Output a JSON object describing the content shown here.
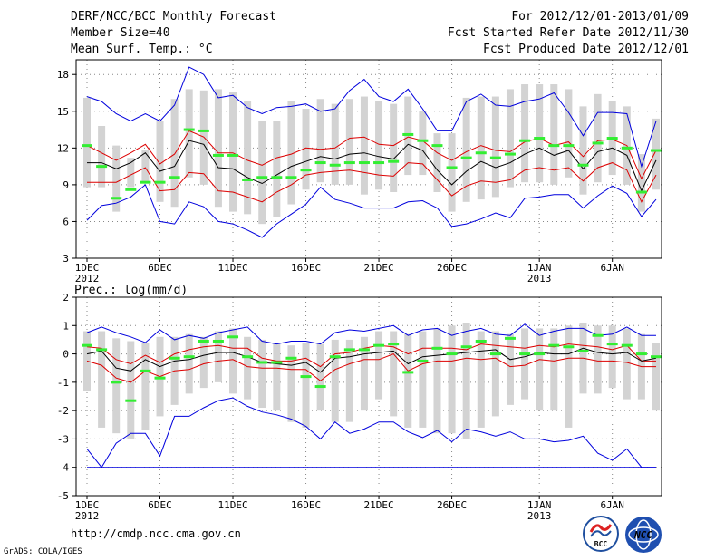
{
  "header": {
    "title": "DERF/NCC/BCC Monthly Forecast",
    "member_size": "Member Size=40",
    "variable": "Mean Surf. Temp.: °C",
    "period": "For 2012/12/01-2013/01/09",
    "fcst_started": "Fcst Started Refer Date 2012/11/30",
    "fcst_produced": "Fcst Produced Date 2012/12/01"
  },
  "footer": {
    "url": "http://cmdp.ncc.cma.gov.cn",
    "credit": "GrADS: COLA/IGES",
    "logo_bcc": "BCC",
    "logo_ncc": "NCC"
  },
  "colors": {
    "box": "#d3d3d3",
    "observed": "#33ee33",
    "mean": "#000000",
    "spread": "#dd0000",
    "extreme": "#0000dd",
    "grid": "#888888"
  },
  "chart_data": [
    {
      "type": "line",
      "panel": "temperature",
      "title": "Mean Surf. Temp.: °C",
      "unit": "°C",
      "ylim": [
        3,
        19.2
      ],
      "yticks": [
        3,
        6,
        9,
        12,
        15,
        18
      ],
      "ytick_labels": [
        "3",
        "6",
        "9",
        "12",
        "15",
        "18"
      ],
      "grid": true,
      "x": [
        1,
        2,
        3,
        4,
        5,
        6,
        7,
        8,
        9,
        10,
        11,
        12,
        13,
        14,
        15,
        16,
        17,
        18,
        19,
        20,
        21,
        22,
        23,
        24,
        25,
        26,
        27,
        28,
        29,
        30,
        31,
        32,
        33,
        34,
        35,
        36,
        37,
        38,
        39,
        40
      ],
      "xticks": [
        1,
        6,
        11,
        16,
        21,
        26,
        32,
        37
      ],
      "xtick_labels": [
        "1DEC",
        "6DEC",
        "11DEC",
        "16DEC",
        "21DEC",
        "26DEC",
        "1JAN",
        "6JAN"
      ],
      "xtick_years": [
        {
          "at": 1,
          "label": "2012"
        },
        {
          "at": 32,
          "label": "2013"
        }
      ],
      "series": [
        {
          "name": "max",
          "role": "extreme",
          "values": [
            16.2,
            15.8,
            14.8,
            14.2,
            14.8,
            14.2,
            15.5,
            18.6,
            18.0,
            16.1,
            16.3,
            15.3,
            14.8,
            15.3,
            15.4,
            15.6,
            15.0,
            15.2,
            16.7,
            17.6,
            16.2,
            15.8,
            16.8,
            15.2,
            13.4,
            13.4,
            15.8,
            16.4,
            15.5,
            15.4,
            15.8,
            16.0,
            16.5,
            14.9,
            13.0,
            14.9,
            14.9,
            14.8,
            10.5,
            14.2
          ]
        },
        {
          "name": "upper",
          "role": "spread",
          "values": [
            12.2,
            11.6,
            11.0,
            11.6,
            12.3,
            10.7,
            11.5,
            13.4,
            12.9,
            11.6,
            11.6,
            11.0,
            10.6,
            11.2,
            11.5,
            12.0,
            11.9,
            12.0,
            12.8,
            12.9,
            12.3,
            12.2,
            12.9,
            12.6,
            11.6,
            11.0,
            11.7,
            12.2,
            11.8,
            11.7,
            12.5,
            12.8,
            12.2,
            12.5,
            11.3,
            12.6,
            12.7,
            12.2,
            9.5,
            11.8
          ]
        },
        {
          "name": "mean",
          "role": "mean",
          "values": [
            10.8,
            10.8,
            10.3,
            10.8,
            11.6,
            10.1,
            10.5,
            12.6,
            12.3,
            10.4,
            10.3,
            9.6,
            9.1,
            9.8,
            10.5,
            10.9,
            11.3,
            11.1,
            11.5,
            11.6,
            11.3,
            11.1,
            12.3,
            11.8,
            10.2,
            9.0,
            10.1,
            10.9,
            10.4,
            10.8,
            11.5,
            12.0,
            11.4,
            11.8,
            10.3,
            11.7,
            12.0,
            11.4,
            8.5,
            11.0
          ]
        },
        {
          "name": "lower",
          "role": "spread",
          "values": [
            9.2,
            9.2,
            9.2,
            9.8,
            10.4,
            8.5,
            8.6,
            10.0,
            9.9,
            8.5,
            8.4,
            8.0,
            7.6,
            8.4,
            9.0,
            9.8,
            10.0,
            10.1,
            10.2,
            10.0,
            9.8,
            9.7,
            10.8,
            10.7,
            9.4,
            8.1,
            8.9,
            9.3,
            9.2,
            9.4,
            10.2,
            10.4,
            10.2,
            10.4,
            9.3,
            10.4,
            10.8,
            10.2,
            7.6,
            9.8
          ]
        },
        {
          "name": "min",
          "role": "extreme",
          "values": [
            6.1,
            7.3,
            7.5,
            8.0,
            9.0,
            6.0,
            5.8,
            7.6,
            7.2,
            6.0,
            5.8,
            5.3,
            4.7,
            5.8,
            6.6,
            7.4,
            8.8,
            7.8,
            7.5,
            7.1,
            7.1,
            7.1,
            7.6,
            7.7,
            7.1,
            5.6,
            5.8,
            6.2,
            6.7,
            6.3,
            7.9,
            8.0,
            8.2,
            8.2,
            7.1,
            8.1,
            8.9,
            8.3,
            6.4,
            7.8
          ]
        },
        {
          "name": "box_high",
          "role": "box",
          "values": [
            16.1,
            13.8,
            12.2,
            11.2,
            11.8,
            14.2,
            16.0,
            16.8,
            16.7,
            16.8,
            16.6,
            15.8,
            14.2,
            14.2,
            15.8,
            15.2,
            16.0,
            15.6,
            16.0,
            16.2,
            15.8,
            15.6,
            16.2,
            15.0,
            13.2,
            13.2,
            16.1,
            16.2,
            16.2,
            16.8,
            17.2,
            17.2,
            17.2,
            16.8,
            15.4,
            16.4,
            15.8,
            15.4,
            11.5,
            14.4
          ]
        },
        {
          "name": "box_low",
          "role": "box",
          "values": [
            8.8,
            8.8,
            6.8,
            8.8,
            9.2,
            7.6,
            7.2,
            9.6,
            9.0,
            7.2,
            6.8,
            6.6,
            5.8,
            6.4,
            7.4,
            8.6,
            9.2,
            9.0,
            9.0,
            8.2,
            8.6,
            8.4,
            9.8,
            9.8,
            8.4,
            6.8,
            7.6,
            7.8,
            8.0,
            8.8,
            9.2,
            9.2,
            9.0,
            9.6,
            8.2,
            9.2,
            9.8,
            9.0,
            6.8,
            8.6
          ]
        },
        {
          "name": "observed",
          "role": "observed",
          "values": [
            12.2,
            10.5,
            7.9,
            8.6,
            9.2,
            9.2,
            9.6,
            13.5,
            13.4,
            11.4,
            11.4,
            9.4,
            9.6,
            9.6,
            9.6,
            10.2,
            10.8,
            10.6,
            10.8,
            10.8,
            10.8,
            10.9,
            13.1,
            12.6,
            12.2,
            10.4,
            11.2,
            11.6,
            11.2,
            11.5,
            12.6,
            12.8,
            12.2,
            12.2,
            10.6,
            12.4,
            12.8,
            12.0,
            8.4,
            11.8
          ]
        }
      ]
    },
    {
      "type": "line",
      "panel": "precipitation",
      "title": "Prec.: log(mm/d)",
      "unit": "log(mm/d)",
      "ylim": [
        -5,
        2
      ],
      "yticks": [
        -5,
        -4,
        -3,
        -2,
        -1,
        0,
        1,
        2
      ],
      "ytick_labels": [
        "-5",
        "-4",
        "-3",
        "-2",
        "-1",
        "0",
        "1",
        "2"
      ],
      "grid": true,
      "x": [
        1,
        2,
        3,
        4,
        5,
        6,
        7,
        8,
        9,
        10,
        11,
        12,
        13,
        14,
        15,
        16,
        17,
        18,
        19,
        20,
        21,
        22,
        23,
        24,
        25,
        26,
        27,
        28,
        29,
        30,
        31,
        32,
        33,
        34,
        35,
        36,
        37,
        38,
        39,
        40
      ],
      "xticks": [
        1,
        6,
        11,
        16,
        21,
        26,
        32,
        37
      ],
      "xtick_labels": [
        "1DEC",
        "6DEC",
        "11DEC",
        "16DEC",
        "21DEC",
        "26DEC",
        "1JAN",
        "6JAN"
      ],
      "xtick_years": [
        {
          "at": 1,
          "label": "2012"
        },
        {
          "at": 32,
          "label": "2013"
        }
      ],
      "series": [
        {
          "name": "max",
          "role": "extreme",
          "values": [
            0.75,
            0.95,
            0.75,
            0.6,
            0.4,
            0.85,
            0.5,
            0.65,
            0.55,
            0.75,
            0.85,
            0.95,
            0.45,
            0.35,
            0.45,
            0.45,
            0.35,
            0.75,
            0.85,
            0.8,
            0.9,
            1.0,
            0.65,
            0.85,
            0.9,
            0.65,
            0.8,
            0.9,
            0.7,
            0.65,
            1.05,
            0.65,
            0.8,
            0.9,
            0.9,
            0.65,
            0.7,
            0.95,
            0.65,
            0.65
          ]
        },
        {
          "name": "upper",
          "role": "spread",
          "values": [
            0.25,
            0.2,
            -0.2,
            -0.35,
            -0.05,
            -0.3,
            0.0,
            0.15,
            0.25,
            0.3,
            0.2,
            0.2,
            -0.15,
            -0.25,
            -0.25,
            -0.15,
            -0.45,
            0.0,
            0.05,
            0.2,
            0.3,
            0.25,
            0.0,
            0.2,
            0.2,
            0.2,
            0.15,
            0.35,
            0.3,
            0.25,
            0.2,
            0.3,
            0.25,
            0.35,
            0.3,
            0.25,
            0.15,
            0.3,
            -0.25,
            -0.25
          ]
        },
        {
          "name": "mean",
          "role": "mean",
          "values": [
            0.0,
            0.1,
            -0.5,
            -0.6,
            -0.2,
            -0.45,
            -0.25,
            -0.2,
            -0.05,
            0.05,
            0.05,
            -0.1,
            -0.3,
            -0.35,
            -0.4,
            -0.3,
            -0.65,
            -0.15,
            -0.1,
            0.0,
            0.05,
            0.1,
            -0.35,
            -0.1,
            -0.05,
            0.0,
            0.05,
            0.1,
            0.15,
            -0.2,
            -0.1,
            0.05,
            0.0,
            0.0,
            0.2,
            0.05,
            0.0,
            0.05,
            -0.25,
            -0.15
          ]
        },
        {
          "name": "lower",
          "role": "spread",
          "values": [
            -0.25,
            -0.4,
            -0.85,
            -1.0,
            -0.6,
            -0.8,
            -0.6,
            -0.55,
            -0.35,
            -0.25,
            -0.2,
            -0.45,
            -0.5,
            -0.5,
            -0.55,
            -0.55,
            -0.95,
            -0.55,
            -0.35,
            -0.2,
            -0.2,
            0.0,
            -0.6,
            -0.35,
            -0.25,
            -0.25,
            -0.15,
            -0.2,
            -0.15,
            -0.45,
            -0.4,
            -0.2,
            -0.25,
            -0.15,
            -0.15,
            -0.25,
            -0.25,
            -0.3,
            -0.45,
            -0.45
          ]
        },
        {
          "name": "min",
          "role": "extreme",
          "values": [
            -3.35,
            -4.0,
            -3.15,
            -2.8,
            -2.8,
            -3.6,
            -2.2,
            -2.2,
            -1.9,
            -1.65,
            -1.55,
            -1.85,
            -2.05,
            -2.15,
            -2.3,
            -2.55,
            -3.0,
            -2.4,
            -2.8,
            -2.65,
            -2.4,
            -2.4,
            -2.75,
            -2.95,
            -2.7,
            -3.1,
            -2.65,
            -2.75,
            -2.9,
            -2.75,
            -3.0,
            -3.0,
            -3.1,
            -3.05,
            -2.9,
            -3.5,
            -3.75,
            -3.35,
            -4.0,
            -4.0
          ]
        },
        {
          "name": "floor",
          "role": "extreme",
          "values": [
            -4.0,
            -4.0,
            -4.0,
            -4.0,
            -4.0,
            -4.0,
            -4.0,
            -4.0,
            -4.0,
            -4.0,
            -4.0,
            -4.0,
            -4.0,
            -4.0,
            -4.0,
            -4.0,
            -4.0,
            -4.0,
            -4.0,
            -4.0,
            -4.0,
            -4.0,
            -4.0,
            -4.0,
            -4.0,
            -4.0,
            -4.0,
            -4.0,
            -4.0,
            -4.0,
            -4.0,
            -4.0,
            -4.0,
            -4.0,
            -4.0,
            -4.0,
            -4.0,
            -4.0,
            -4.0,
            -4.0
          ]
        },
        {
          "name": "box_high",
          "role": "box",
          "values": [
            0.8,
            0.8,
            0.55,
            0.45,
            0.4,
            0.6,
            0.6,
            0.7,
            0.6,
            0.8,
            0.9,
            0.6,
            0.5,
            0.35,
            0.3,
            0.4,
            0.35,
            0.5,
            0.5,
            0.6,
            0.8,
            0.8,
            0.7,
            0.8,
            0.9,
            1.0,
            1.1,
            0.8,
            0.8,
            0.7,
            0.9,
            0.9,
            0.9,
            1.0,
            1.1,
            1.0,
            1.0,
            0.9,
            0.7,
            0.4
          ]
        },
        {
          "name": "box_low",
          "role": "box",
          "values": [
            -1.3,
            -2.6,
            -2.8,
            -3.0,
            -2.7,
            -2.2,
            -1.8,
            -1.4,
            -1.2,
            -1.0,
            -1.4,
            -1.6,
            -1.9,
            -2.0,
            -2.4,
            -2.6,
            -2.0,
            -2.4,
            -2.4,
            -2.0,
            -1.6,
            -2.2,
            -2.6,
            -2.6,
            -2.8,
            -2.8,
            -3.0,
            -2.6,
            -2.2,
            -1.8,
            -1.6,
            -2.0,
            -2.0,
            -2.6,
            -1.4,
            -1.4,
            -1.2,
            -1.6,
            -1.6,
            -2.0
          ]
        },
        {
          "name": "observed",
          "role": "observed",
          "values": [
            0.3,
            0.15,
            -1.0,
            -1.65,
            -0.6,
            -0.85,
            -0.15,
            -0.1,
            0.45,
            0.45,
            0.6,
            -0.1,
            -0.3,
            -0.3,
            -0.15,
            -0.8,
            -1.15,
            -0.1,
            0.15,
            0.15,
            0.3,
            0.35,
            -0.65,
            -0.25,
            0.2,
            0.0,
            0.25,
            0.45,
            0.0,
            0.55,
            0.0,
            0.0,
            0.3,
            0.25,
            0.1,
            0.65,
            0.35,
            0.3,
            0.0,
            -0.1
          ]
        }
      ]
    }
  ]
}
